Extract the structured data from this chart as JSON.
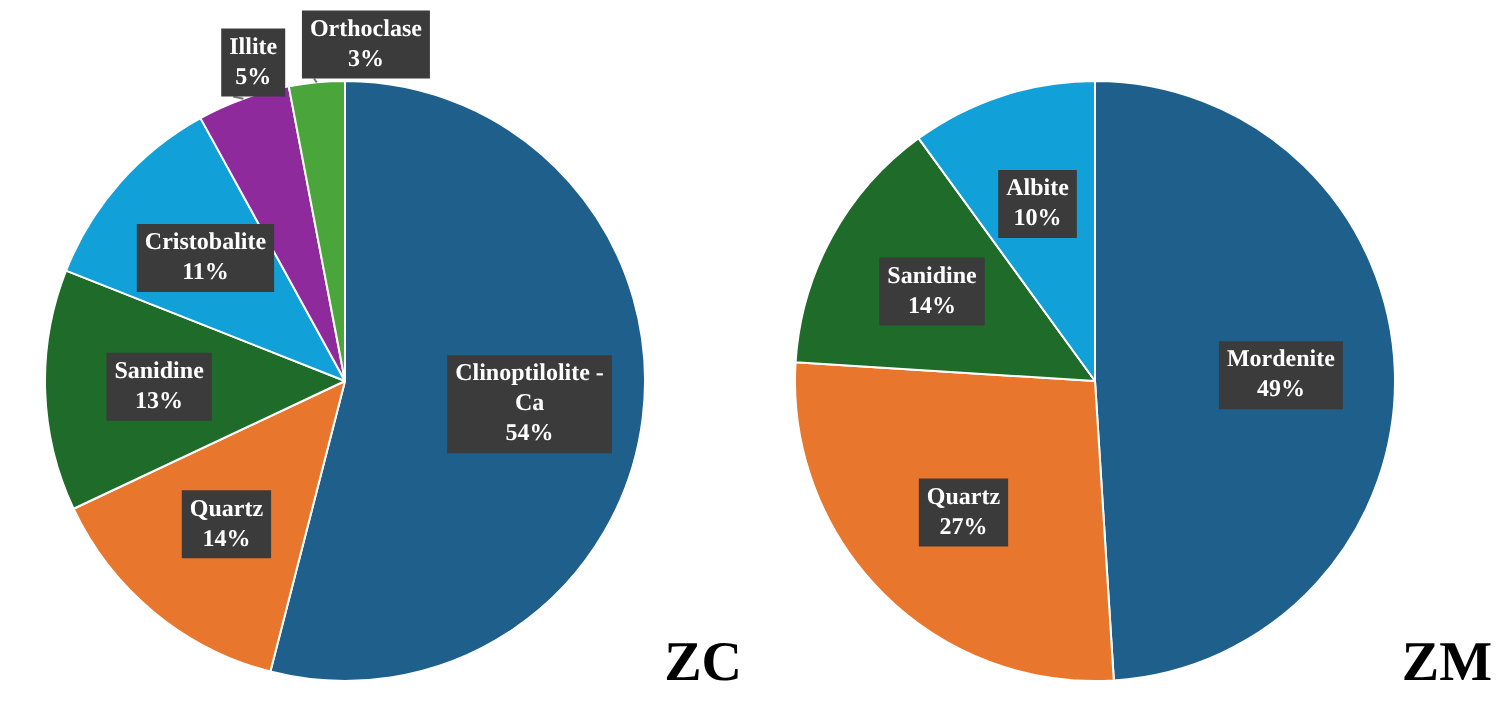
{
  "chart_data": [
    {
      "type": "pie",
      "title": "ZC",
      "categories": [
        "Clinoptilolite - Ca",
        "Quartz",
        "Sanidine",
        "Cristobalite",
        "Illite",
        "Orthoclase"
      ],
      "values": [
        54,
        14,
        13,
        11,
        5,
        3
      ],
      "value_labels": [
        "54%",
        "14%",
        "13%",
        "11%",
        "5%",
        "3%"
      ],
      "colors": [
        "#1f5f8b",
        "#e8762d",
        "#1e6b2a",
        "#12a0d8",
        "#8e2a9c",
        "#4aa63a"
      ],
      "legend": false
    },
    {
      "type": "pie",
      "title": "ZM",
      "categories": [
        "Mordenite",
        "Quartz",
        "Sanidine",
        "Albite"
      ],
      "values": [
        49,
        27,
        14,
        10
      ],
      "value_labels": [
        "49%",
        "27%",
        "14%",
        "10%"
      ],
      "colors": [
        "#1f5f8b",
        "#e8762d",
        "#1e6b2a",
        "#12a0d8"
      ],
      "legend": false
    }
  ]
}
